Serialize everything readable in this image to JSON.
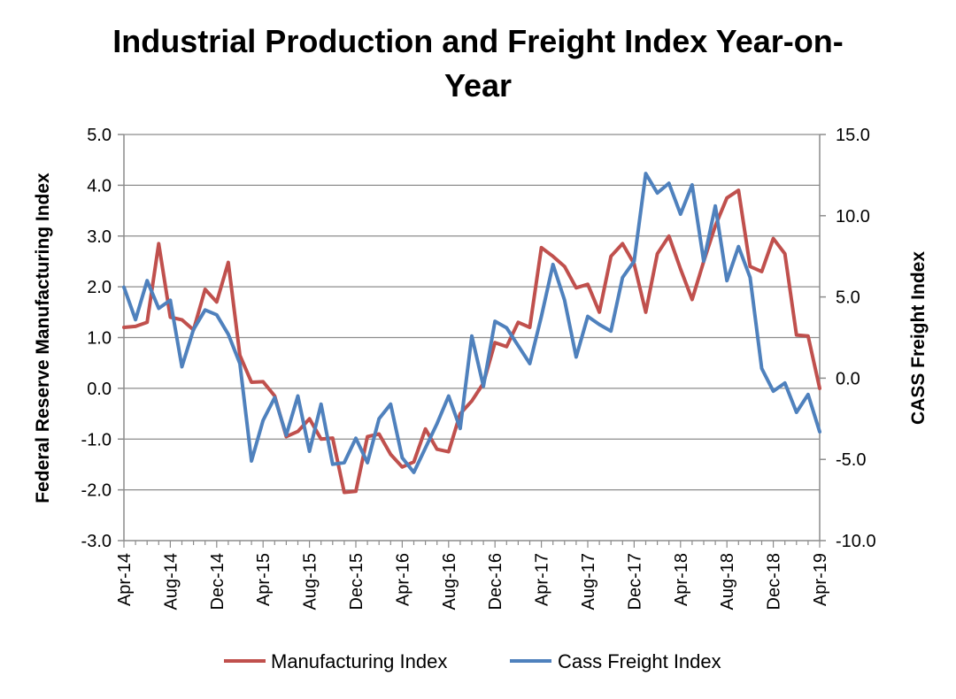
{
  "chart_data": {
    "type": "line",
    "title": "Industrial Production and Freight Index Year-on-Year",
    "x_tick_labels": [
      "Apr-14",
      "Aug-14",
      "Dec-14",
      "Apr-15",
      "Aug-15",
      "Dec-15",
      "Apr-16",
      "Aug-16",
      "Dec-16",
      "Apr-17",
      "Aug-17",
      "Dec-17",
      "Apr-18",
      "Aug-18",
      "Dec-18",
      "Apr-19"
    ],
    "x_start": "Apr-14",
    "x_end": "Apr-19",
    "y_left": {
      "label": "Federal Reserve Manufacturing Index",
      "range": [
        -3.0,
        5.0
      ],
      "ticks": [
        "5.0",
        "4.0",
        "3.0",
        "2.0",
        "1.0",
        "0.0",
        "-1.0",
        "-2.0",
        "-3.0"
      ]
    },
    "y_right": {
      "label": "CASS Freight Index",
      "range": [
        -10.0,
        15.0
      ],
      "ticks": [
        "15.0",
        "10.0",
        "5.0",
        "0.0",
        "-5.0",
        "-10.0"
      ]
    },
    "grid": true,
    "legend_position": "bottom",
    "series": [
      {
        "name": "Manufacturing Index",
        "axis": "left",
        "color": "#C0504D",
        "values": [
          1.2,
          1.22,
          1.3,
          2.85,
          1.4,
          1.35,
          1.15,
          1.95,
          1.7,
          2.48,
          0.65,
          0.12,
          0.13,
          -0.15,
          -0.95,
          -0.85,
          -0.6,
          -1.0,
          -0.98,
          -2.05,
          -2.03,
          -0.95,
          -0.9,
          -1.3,
          -1.55,
          -1.45,
          -0.8,
          -1.2,
          -1.25,
          -0.5,
          -0.25,
          0.1,
          0.9,
          0.82,
          1.3,
          1.2,
          2.77,
          2.6,
          2.4,
          1.98,
          2.05,
          1.5,
          2.6,
          2.85,
          2.45,
          1.5,
          2.65,
          3.0,
          2.35,
          1.75,
          2.5,
          3.2,
          3.75,
          3.9,
          2.4,
          2.3,
          2.95,
          2.65,
          1.05,
          1.03,
          0.0
        ]
      },
      {
        "name": "Cass Freight Index",
        "axis": "right",
        "color": "#4F81BD",
        "values": [
          5.6,
          3.6,
          6.0,
          4.3,
          4.8,
          0.7,
          3.0,
          4.2,
          3.9,
          2.7,
          0.9,
          -5.1,
          -2.6,
          -1.2,
          -3.5,
          -1.1,
          -4.5,
          -1.6,
          -5.3,
          -5.2,
          -3.7,
          -5.2,
          -2.5,
          -1.6,
          -4.9,
          -5.8,
          -4.3,
          -2.8,
          -1.1,
          -3.1,
          2.6,
          -0.5,
          3.5,
          3.1,
          2.0,
          0.9,
          3.8,
          7.0,
          4.8,
          1.3,
          3.8,
          3.3,
          2.9,
          6.2,
          7.2,
          12.6,
          11.4,
          12.0,
          10.1,
          11.9,
          7.2,
          10.6,
          6.0,
          8.1,
          6.2,
          0.6,
          -0.8,
          -0.3,
          -2.1,
          -1.0,
          -3.3
        ]
      }
    ]
  }
}
